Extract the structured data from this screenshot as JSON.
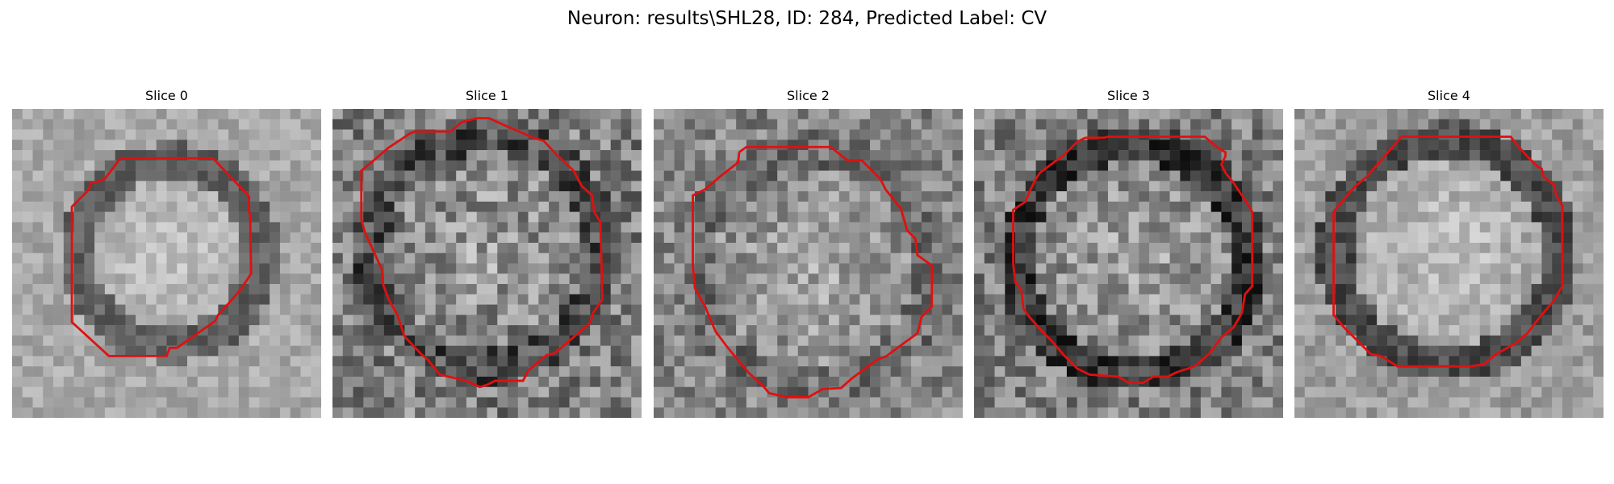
{
  "figure": {
    "title": "Neuron: results\\SHL28, ID: 284, Predicted Label: CV"
  },
  "style": {
    "contour_color": "#e01010"
  },
  "panels": [
    {
      "title": "Slice 0"
    },
    {
      "title": "Slice 1"
    },
    {
      "title": "Slice 2"
    },
    {
      "title": "Slice 3"
    },
    {
      "title": "Slice 4"
    }
  ]
}
